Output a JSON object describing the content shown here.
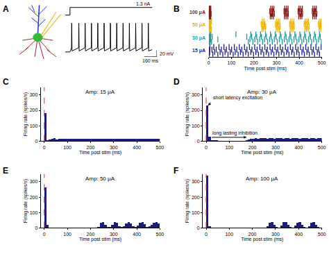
{
  "chart_data": [
    {
      "panel": "A",
      "type": "line",
      "color": "#000000",
      "tick_labels": false,
      "x": [
        0,
        60,
        79,
        82,
        86,
        169,
        172,
        176,
        249,
        252,
        256,
        329,
        332,
        336,
        409,
        412,
        416,
        489,
        492,
        496,
        569,
        572,
        576,
        649,
        652,
        656,
        729,
        732,
        736,
        809,
        812,
        816,
        889,
        892,
        896,
        969,
        972,
        976,
        1049,
        1052,
        1056,
        1100
      ],
      "values": [
        -65,
        -65,
        -52,
        25,
        -62,
        -52,
        25,
        -62,
        -52,
        25,
        -62,
        -52,
        25,
        -62,
        -52,
        25,
        -62,
        -52,
        25,
        -62,
        -52,
        25,
        -62,
        -52,
        25,
        -62,
        -52,
        25,
        -62,
        -52,
        25,
        -62,
        -52,
        25,
        -62,
        -52,
        25,
        -62,
        -52,
        25,
        -62,
        -58
      ],
      "xlim": [
        0,
        1160
      ],
      "ylim": [
        -80,
        30
      ],
      "stimulus": {
        "label": "1.3 nA",
        "x": [
          0,
          60,
          60,
          1100
        ],
        "values": [
          0,
          0,
          1.3,
          1.3
        ],
        "ylim": [
          -0.3,
          1.5
        ]
      },
      "scale_bars": [
        {
          "axis": "x",
          "length": 160,
          "label": "160 ms"
        },
        {
          "axis": "y",
          "length": 20,
          "label": "20 mV"
        }
      ]
    },
    {
      "panel": "B",
      "type": "raster",
      "x_label": "Time post stim (ms)",
      "tick_labels": "x",
      "xlim": [
        0,
        500
      ],
      "xticks": [
        0,
        100,
        200,
        300,
        400,
        500
      ],
      "series": [
        {
          "name": "100 μA",
          "color": "#8b1414",
          "trials": [
            [
              1,
              3,
              5,
              7,
              9,
              272,
              279,
              286,
              335,
              342,
              350,
              398,
              405,
              412,
              460,
              468,
              475
            ],
            [
              1,
              2,
              4,
              6,
              8,
              10,
              275,
              282,
              290,
              338,
              345,
              352,
              400,
              408,
              415,
              463,
              470,
              478
            ],
            [
              1,
              3,
              5,
              8,
              270,
              277,
              284,
              333,
              340,
              347,
              395,
              402,
              410,
              458,
              465,
              472
            ],
            [
              2,
              4,
              6,
              9,
              274,
              281,
              288,
              336,
              344,
              351,
              399,
              406,
              414,
              461,
              469,
              476
            ]
          ]
        },
        {
          "name": "50 μA",
          "color": "#f0b400",
          "trials": [
            [
              1,
              4,
              7,
              11,
              235,
              241,
              250,
              298,
              305,
              312,
              360,
              368,
              375,
              425,
              432,
              440,
              488,
              495
            ],
            [
              2,
              5,
              8,
              238,
              245,
              252,
              300,
              308,
              316,
              363,
              370,
              378,
              428,
              436,
              444,
              490,
              497
            ],
            [
              1,
              3,
              6,
              9,
              232,
              240,
              248,
              295,
              303,
              310,
              358,
              366,
              373,
              422,
              430,
              437,
              485,
              493
            ],
            [
              2,
              4,
              8,
              12,
              237,
              244,
              300,
              307,
              314,
              362,
              369,
              377,
              426,
              434,
              441,
              489,
              496
            ]
          ]
        },
        {
          "name": "30 μA",
          "color": "#1a9a9a",
          "trials": [
            [
              2,
              6,
              12,
              175,
              195,
              216,
              238,
              260,
              281,
              303,
              325,
              347,
              368,
              390,
              412,
              433,
              455,
              477,
              498
            ],
            [
              3,
              8,
              40,
              182,
              204,
              225,
              247,
              269,
              290,
              312,
              334,
              355,
              377,
              399,
              420,
              442,
              464,
              486
            ],
            [
              2,
              5,
              15,
              168,
              190,
              212,
              233,
              255,
              277,
              298,
              320,
              342,
              363,
              385,
              407,
              428,
              450,
              472,
              493
            ],
            [
              4,
              9,
              120,
              186,
              208,
              229,
              251,
              273,
              294,
              316,
              338,
              359,
              381,
              403,
              424,
              446,
              468,
              490
            ]
          ]
        },
        {
          "name": "15 μA",
          "color": "#1a1a8c",
          "trials": [
            [
              2,
              18,
              40,
              62,
              85,
              108,
              130,
              152,
              175,
              198,
              220,
              243,
              265,
              288,
              310,
              333,
              355,
              378,
              400,
              423,
              445,
              468,
              490
            ],
            [
              4,
              26,
              50,
              72,
              95,
              117,
              140,
              163,
              186,
              208,
              231,
              254,
              276,
              299,
              321,
              344,
              367,
              389,
              412,
              434,
              457,
              480
            ],
            [
              3,
              14,
              33,
              56,
              78,
              101,
              124,
              146,
              169,
              191,
              214,
              237,
              259,
              282,
              305,
              327,
              350,
              372,
              395,
              418,
              440,
              463,
              486
            ],
            [
              5,
              22,
              45,
              67,
              90,
              113,
              135,
              158,
              180,
              203,
              226,
              248,
              271,
              293,
              316,
              339,
              361,
              384,
              406,
              429,
              452,
              474,
              497
            ]
          ]
        }
      ]
    },
    {
      "panel": "C",
      "type": "histogram",
      "title": "Amp: 15 μA",
      "x_label": "Time post stim (ms)",
      "y_label": "Firing rate (spikes/s)",
      "color": "#1c1c80",
      "xlim": [
        -15,
        500
      ],
      "xticks": [
        0,
        100,
        200,
        300,
        400,
        500
      ],
      "ylim": [
        0,
        350
      ],
      "yticks": [
        0,
        100,
        200,
        300
      ],
      "stimulus": {
        "x": 0,
        "color": "#e03030",
        "line_style": "dash"
      },
      "bins": [
        0,
        10,
        20,
        30,
        40,
        50,
        60,
        70,
        80,
        90,
        100,
        110,
        120,
        130,
        140,
        150,
        160,
        170,
        180,
        190,
        200,
        210,
        220,
        230,
        240,
        250,
        260,
        270,
        280,
        290,
        300,
        310,
        320,
        330,
        340,
        350,
        360,
        370,
        380,
        390,
        400,
        410,
        420,
        430,
        440,
        450,
        460,
        470,
        480,
        490,
        500
      ],
      "values": [
        180,
        6,
        10,
        14,
        20,
        12,
        14,
        16,
        15,
        14,
        16,
        15,
        17,
        14,
        15,
        16,
        15,
        14,
        17,
        15,
        16,
        15,
        14,
        16,
        17,
        15,
        14,
        16,
        15,
        17,
        15,
        16,
        14,
        15,
        17,
        16,
        15,
        14,
        16,
        15,
        17,
        15,
        16,
        14,
        15,
        16,
        17,
        15,
        14,
        16
      ]
    },
    {
      "panel": "D",
      "type": "histogram",
      "title": "Amp: 30 μA",
      "x_label": "Time post stim (ms)",
      "y_label": "Firing rate (spikes/s)",
      "color": "#1c1c80",
      "xlim": [
        -15,
        500
      ],
      "xticks": [
        0,
        100,
        200,
        300,
        400,
        500
      ],
      "ylim": [
        0,
        350
      ],
      "yticks": [
        0,
        100,
        200,
        300
      ],
      "stimulus": {
        "x": 0,
        "color": "#e03030",
        "line_style": "dash"
      },
      "annotations": [
        {
          "text": "short latency excitation",
          "x": 8,
          "y": 232,
          "ax": 25,
          "ay": 255
        },
        {
          "text": "long lasting inhibition",
          "x": 175,
          "y": 25,
          "ax": 20,
          "ay": 25
        }
      ],
      "bins": [
        0,
        10,
        20,
        30,
        40,
        50,
        60,
        70,
        80,
        90,
        100,
        110,
        120,
        130,
        140,
        150,
        160,
        170,
        180,
        190,
        200,
        210,
        220,
        230,
        240,
        250,
        260,
        270,
        280,
        290,
        300,
        310,
        320,
        330,
        340,
        350,
        360,
        370,
        380,
        390,
        400,
        410,
        420,
        430,
        440,
        450,
        460,
        470,
        480,
        490,
        500
      ],
      "values": [
        230,
        30,
        8,
        6,
        5,
        4,
        4,
        3,
        3,
        2,
        3,
        2,
        2,
        3,
        2,
        3,
        4,
        6,
        10,
        14,
        16,
        18,
        17,
        19,
        18,
        20,
        17,
        19,
        18,
        17,
        19,
        18,
        20,
        17,
        18,
        19,
        17,
        18,
        20,
        18,
        17,
        19,
        18,
        20,
        17,
        18,
        19,
        17,
        18,
        19
      ]
    },
    {
      "panel": "E",
      "type": "histogram",
      "title": "Amp: 50 μA",
      "x_label": "Time post stim (ms)",
      "y_label": "Firing rate (spikes/s)",
      "color": "#1c1c80",
      "xlim": [
        -15,
        500
      ],
      "xticks": [
        0,
        100,
        200,
        300,
        400,
        500
      ],
      "ylim": [
        0,
        350
      ],
      "yticks": [
        0,
        100,
        200,
        300
      ],
      "stimulus": {
        "x": 0,
        "color": "#e03030",
        "line_style": "dash"
      },
      "bins": [
        0,
        10,
        20,
        30,
        40,
        50,
        60,
        70,
        80,
        90,
        100,
        110,
        120,
        130,
        140,
        150,
        160,
        170,
        180,
        190,
        200,
        210,
        220,
        230,
        240,
        250,
        260,
        270,
        280,
        290,
        300,
        310,
        320,
        330,
        340,
        350,
        360,
        370,
        380,
        390,
        400,
        410,
        420,
        430,
        440,
        450,
        460,
        470,
        480,
        490,
        500
      ],
      "values": [
        265,
        22,
        4,
        2,
        0,
        0,
        0,
        0,
        0,
        0,
        0,
        0,
        0,
        0,
        0,
        0,
        0,
        0,
        0,
        0,
        0,
        0,
        0,
        8,
        32,
        36,
        18,
        6,
        8,
        22,
        38,
        34,
        12,
        6,
        10,
        28,
        38,
        30,
        10,
        8,
        14,
        32,
        36,
        24,
        8,
        10,
        20,
        34,
        38,
        28
      ]
    },
    {
      "panel": "F",
      "type": "histogram",
      "title": "Amp: 100 μA",
      "x_label": "Time post stim (ms)",
      "y_label": "Firing rate (spikes/s)",
      "color": "#1c1c80",
      "xlim": [
        -15,
        500
      ],
      "xticks": [
        0,
        100,
        200,
        300,
        400,
        500
      ],
      "ylim": [
        0,
        350
      ],
      "yticks": [
        0,
        100,
        200,
        300
      ],
      "stimulus": {
        "x": 0,
        "color": "#e03030",
        "line_style": "dash"
      },
      "bins": [
        0,
        10,
        20,
        30,
        40,
        50,
        60,
        70,
        80,
        90,
        100,
        110,
        120,
        130,
        140,
        150,
        160,
        170,
        180,
        190,
        200,
        210,
        220,
        230,
        240,
        250,
        260,
        270,
        280,
        290,
        300,
        310,
        320,
        330,
        340,
        350,
        360,
        370,
        380,
        390,
        400,
        410,
        420,
        430,
        440,
        450,
        460,
        470,
        480,
        490,
        500
      ],
      "values": [
        340,
        12,
        2,
        0,
        0,
        0,
        0,
        0,
        0,
        0,
        0,
        0,
        0,
        0,
        0,
        0,
        0,
        0,
        0,
        0,
        0,
        0,
        0,
        0,
        0,
        0,
        10,
        34,
        38,
        20,
        6,
        4,
        14,
        36,
        38,
        18,
        6,
        4,
        16,
        34,
        38,
        20,
        6,
        4,
        12,
        32,
        38,
        22,
        8,
        4
      ]
    }
  ]
}
